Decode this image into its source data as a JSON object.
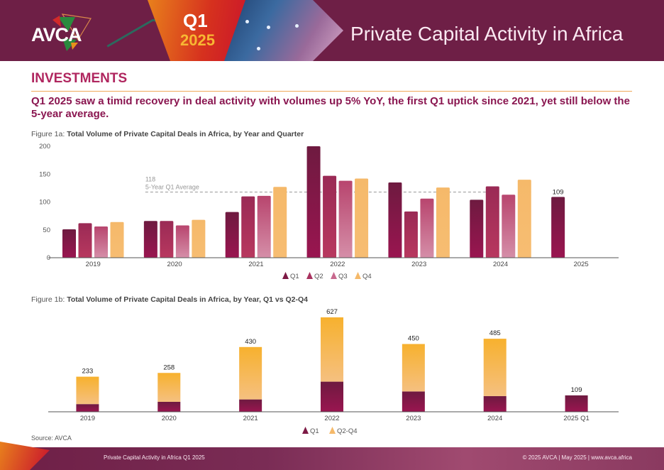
{
  "header": {
    "logo_text": "AVCA",
    "badge_quarter": "Q1",
    "badge_year": "2025",
    "title": "Private Capital Activity in Africa"
  },
  "section": {
    "title": "INVESTMENTS",
    "headline": "Q1 2025 saw a timid recovery in deal activity with volumes up 5% YoY, the first Q1 uptick since 2021, yet still below the 5-year average."
  },
  "colors": {
    "brand": "#6e1f46",
    "accent": "#b0265f",
    "q1": "#7d1a45",
    "q2": "#a8325f",
    "q3": "#c8698e",
    "q4": "#f5b96a",
    "q2q4": "#f7b64a"
  },
  "figure1a": {
    "caption_prefix": "Figure 1a: ",
    "caption_title": "Total Volume of Private Capital Deals in Africa, by Year and Quarter"
  },
  "figure1b": {
    "caption_prefix": "Figure 1b: ",
    "caption_title": "Total Volume of Private Capital Deals in Africa, by Year, Q1 vs Q2-Q4"
  },
  "chart_data": [
    {
      "type": "bar",
      "title": "Total Volume of Private Capital Deals in Africa, by Year and Quarter",
      "categories": [
        "2019",
        "2020",
        "2021",
        "2022",
        "2023",
        "2024",
        "2025"
      ],
      "series": [
        {
          "name": "Q1",
          "values": [
            51,
            66,
            82,
            200,
            135,
            104,
            109
          ]
        },
        {
          "name": "Q2",
          "values": [
            62,
            66,
            110,
            147,
            83,
            128,
            null
          ]
        },
        {
          "name": "Q3",
          "values": [
            56,
            58,
            111,
            138,
            106,
            113,
            null
          ]
        },
        {
          "name": "Q4",
          "values": [
            64,
            68,
            127,
            142,
            126,
            140,
            null
          ]
        }
      ],
      "data_labels": [
        {
          "category": "2025",
          "series": "Q1",
          "text": "109"
        }
      ],
      "reference_line": {
        "value": 118,
        "label_value": "118",
        "label": "5-Year Q1 Average",
        "style": "dashed"
      },
      "yticks": [
        0,
        50,
        100,
        150,
        200
      ],
      "ylim": [
        0,
        200
      ],
      "xlabel": "",
      "ylabel": "",
      "grid": false,
      "legend": {
        "position": "bottom-center",
        "entries": [
          "Q1",
          "Q2",
          "Q3",
          "Q4"
        ]
      }
    },
    {
      "type": "bar",
      "stacked": true,
      "title": "Total Volume of Private Capital Deals in Africa, by Year, Q1 vs Q2-Q4",
      "categories": [
        "2019",
        "2020",
        "2021",
        "2022",
        "2023",
        "2024",
        "2025 Q1"
      ],
      "series": [
        {
          "name": "Q1",
          "values": [
            51,
            66,
            82,
            200,
            135,
            104,
            109
          ]
        },
        {
          "name": "Q2-Q4",
          "values": [
            182,
            192,
            348,
            427,
            315,
            381,
            0
          ]
        }
      ],
      "totals": [
        233,
        258,
        430,
        627,
        450,
        485,
        109
      ],
      "ylim": [
        0,
        627
      ],
      "xlabel": "",
      "ylabel": "",
      "grid": false,
      "legend": {
        "position": "bottom-center",
        "entries": [
          "Q1",
          "Q2-Q4"
        ]
      }
    }
  ],
  "source": "Source: AVCA",
  "footer": {
    "left": "Private Capital Activity in Africa Q1 2025",
    "right": "© 2025 AVCA  |  May 2025  |  www.avca.africa"
  }
}
